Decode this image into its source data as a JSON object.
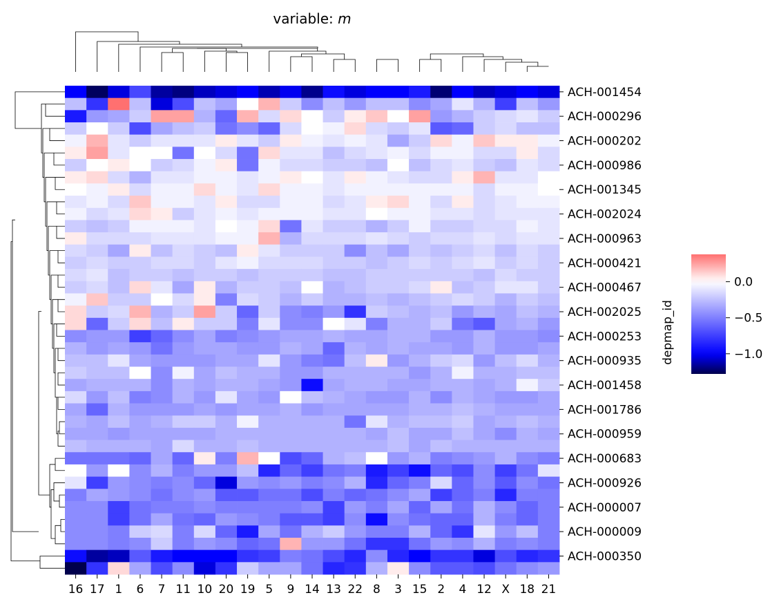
{
  "chart_data": {
    "type": "heatmap",
    "title_prefix": "variable: ",
    "title_var": "m",
    "ylabel": "depmap_id",
    "columns": [
      "16",
      "17",
      "1",
      "6",
      "7",
      "11",
      "10",
      "20",
      "19",
      "5",
      "9",
      "14",
      "13",
      "22",
      "8",
      "3",
      "15",
      "2",
      "4",
      "12",
      "X",
      "18",
      "21"
    ],
    "rows": [
      {
        "label": "ACH-001454",
        "shown": true
      },
      {
        "label": "",
        "shown": false
      },
      {
        "label": "ACH-000296",
        "shown": true
      },
      {
        "label": "",
        "shown": false
      },
      {
        "label": "ACH-000202",
        "shown": true
      },
      {
        "label": "",
        "shown": false
      },
      {
        "label": "ACH-000986",
        "shown": true
      },
      {
        "label": "",
        "shown": false
      },
      {
        "label": "ACH-001345",
        "shown": true
      },
      {
        "label": "",
        "shown": false
      },
      {
        "label": "ACH-002024",
        "shown": true
      },
      {
        "label": "",
        "shown": false
      },
      {
        "label": "ACH-000963",
        "shown": true
      },
      {
        "label": "",
        "shown": false
      },
      {
        "label": "ACH-000421",
        "shown": true
      },
      {
        "label": "",
        "shown": false
      },
      {
        "label": "ACH-000467",
        "shown": true
      },
      {
        "label": "",
        "shown": false
      },
      {
        "label": "ACH-002025",
        "shown": true
      },
      {
        "label": "",
        "shown": false
      },
      {
        "label": "ACH-000253",
        "shown": true
      },
      {
        "label": "",
        "shown": false
      },
      {
        "label": "ACH-000935",
        "shown": true
      },
      {
        "label": "",
        "shown": false
      },
      {
        "label": "ACH-001458",
        "shown": true
      },
      {
        "label": "",
        "shown": false
      },
      {
        "label": "ACH-001786",
        "shown": true
      },
      {
        "label": "",
        "shown": false
      },
      {
        "label": "ACH-000959",
        "shown": true
      },
      {
        "label": "",
        "shown": false
      },
      {
        "label": "ACH-000683",
        "shown": true
      },
      {
        "label": "",
        "shown": false
      },
      {
        "label": "ACH-000926",
        "shown": true
      },
      {
        "label": "",
        "shown": false
      },
      {
        "label": "ACH-000007",
        "shown": true
      },
      {
        "label": "",
        "shown": false
      },
      {
        "label": "ACH-000009",
        "shown": true
      },
      {
        "label": "",
        "shown": false
      },
      {
        "label": "ACH-000350",
        "shown": true
      },
      {
        "label": "",
        "shown": false
      }
    ],
    "values": [
      [
        -1.0,
        -1.25,
        -1.05,
        -0.72,
        -1.15,
        -1.2,
        -1.1,
        -1.05,
        -1.0,
        -1.12,
        -1.02,
        -1.18,
        -0.95,
        -1.05,
        -1.0,
        -1.0,
        -0.9,
        -1.22,
        -1.0,
        -1.1,
        -1.05,
        -1.0,
        -1.05
      ],
      [
        -0.25,
        -0.8,
        0.38,
        -0.25,
        -1.05,
        -0.7,
        -0.25,
        -0.35,
        0.0,
        0.2,
        -0.2,
        -0.45,
        -0.25,
        -0.4,
        -0.25,
        -0.25,
        -0.45,
        -0.35,
        -0.1,
        -0.3,
        -0.75,
        -0.25,
        -0.4
      ],
      [
        -0.9,
        -0.4,
        -0.35,
        -0.2,
        0.25,
        0.25,
        -0.3,
        -0.6,
        0.2,
        -0.15,
        0.1,
        0.0,
        -0.2,
        0.05,
        0.15,
        0.0,
        0.25,
        -0.4,
        -0.3,
        -0.2,
        -0.15,
        -0.1,
        -0.2
      ],
      [
        -0.2,
        0.0,
        -0.2,
        -0.7,
        -0.35,
        -0.25,
        -0.2,
        -0.55,
        -0.45,
        -0.6,
        -0.15,
        0.0,
        -0.05,
        0.1,
        -0.15,
        -0.2,
        -0.1,
        -0.65,
        -0.6,
        -0.2,
        -0.15,
        -0.25,
        -0.25
      ],
      [
        -0.05,
        0.2,
        -0.1,
        -0.2,
        -0.1,
        -0.1,
        -0.1,
        0.05,
        -0.1,
        -0.2,
        0.05,
        -0.05,
        -0.1,
        -0.05,
        -0.1,
        -0.35,
        -0.2,
        0.1,
        -0.05,
        0.15,
        0.05,
        0.05,
        -0.05
      ],
      [
        0.05,
        0.25,
        -0.1,
        0.0,
        0.0,
        -0.55,
        0.0,
        -0.15,
        -0.55,
        0.1,
        -0.1,
        -0.1,
        -0.25,
        -0.15,
        -0.1,
        -0.05,
        -0.15,
        -0.05,
        -0.05,
        -0.15,
        -0.15,
        0.05,
        -0.15
      ],
      [
        -0.2,
        0.0,
        0.05,
        0.0,
        -0.2,
        -0.15,
        -0.05,
        0.05,
        -0.55,
        -0.05,
        -0.15,
        -0.15,
        -0.2,
        -0.2,
        -0.25,
        0.0,
        -0.25,
        -0.15,
        -0.1,
        -0.2,
        -0.25,
        -0.1,
        -0.15
      ],
      [
        0.05,
        0.1,
        -0.15,
        -0.3,
        -0.1,
        -0.1,
        -0.05,
        -0.05,
        -0.1,
        -0.05,
        0.05,
        0.0,
        -0.1,
        0.05,
        -0.05,
        -0.1,
        -0.15,
        -0.15,
        0.05,
        0.2,
        -0.1,
        -0.1,
        0.0
      ],
      [
        0.0,
        -0.05,
        0.05,
        -0.15,
        -0.05,
        -0.05,
        0.1,
        -0.05,
        -0.1,
        0.1,
        -0.05,
        -0.05,
        -0.1,
        -0.05,
        -0.05,
        -0.05,
        -0.05,
        -0.05,
        -0.05,
        -0.15,
        -0.05,
        -0.05,
        0.0
      ],
      [
        -0.1,
        -0.05,
        -0.15,
        0.15,
        -0.05,
        -0.05,
        -0.1,
        0.05,
        -0.15,
        -0.15,
        -0.05,
        -0.05,
        -0.15,
        -0.1,
        0.05,
        0.1,
        -0.05,
        -0.15,
        0.05,
        -0.15,
        -0.1,
        -0.05,
        -0.05
      ],
      [
        -0.05,
        -0.15,
        -0.1,
        0.1,
        0.05,
        -0.2,
        -0.1,
        -0.05,
        -0.1,
        -0.05,
        -0.05,
        -0.05,
        -0.1,
        -0.1,
        0.0,
        -0.05,
        -0.05,
        -0.1,
        -0.1,
        -0.15,
        -0.1,
        -0.1,
        -0.1
      ],
      [
        -0.2,
        -0.25,
        -0.2,
        -0.05,
        -0.05,
        -0.05,
        -0.1,
        0.0,
        -0.05,
        0.1,
        -0.55,
        -0.1,
        -0.2,
        -0.2,
        -0.3,
        -0.2,
        -0.05,
        -0.2,
        -0.2,
        -0.15,
        -0.15,
        -0.05,
        -0.1
      ],
      [
        0.05,
        -0.15,
        -0.15,
        -0.15,
        -0.1,
        -0.1,
        -0.1,
        -0.05,
        -0.05,
        0.2,
        -0.3,
        -0.15,
        -0.15,
        -0.15,
        -0.1,
        -0.15,
        -0.2,
        -0.15,
        -0.15,
        -0.1,
        -0.15,
        -0.1,
        -0.1
      ],
      [
        -0.15,
        -0.2,
        -0.35,
        0.05,
        -0.25,
        -0.15,
        -0.2,
        -0.25,
        0.05,
        -0.1,
        -0.2,
        -0.2,
        -0.2,
        -0.45,
        -0.25,
        -0.35,
        -0.2,
        -0.25,
        -0.2,
        -0.15,
        -0.25,
        -0.15,
        -0.2
      ],
      [
        -0.2,
        -0.15,
        -0.2,
        -0.2,
        -0.15,
        -0.15,
        -0.2,
        -0.1,
        -0.05,
        -0.15,
        -0.15,
        -0.15,
        -0.2,
        -0.2,
        -0.25,
        -0.2,
        -0.15,
        -0.2,
        -0.15,
        -0.1,
        -0.2,
        -0.15,
        -0.2
      ],
      [
        -0.15,
        -0.1,
        -0.25,
        -0.2,
        -0.2,
        -0.25,
        -0.2,
        -0.2,
        -0.25,
        -0.2,
        -0.2,
        -0.2,
        -0.25,
        -0.25,
        -0.2,
        -0.2,
        -0.2,
        -0.2,
        -0.2,
        -0.25,
        -0.15,
        -0.2,
        -0.2
      ],
      [
        -0.2,
        -0.15,
        -0.25,
        0.1,
        -0.1,
        -0.35,
        0.05,
        -0.3,
        -0.2,
        -0.2,
        -0.25,
        0.0,
        -0.3,
        -0.25,
        -0.2,
        -0.2,
        -0.15,
        0.05,
        -0.25,
        -0.2,
        -0.1,
        -0.1,
        -0.2
      ],
      [
        -0.05,
        0.15,
        -0.2,
        -0.2,
        0.0,
        -0.15,
        0.05,
        -0.5,
        -0.15,
        -0.2,
        -0.3,
        -0.2,
        -0.3,
        -0.3,
        -0.25,
        -0.3,
        -0.25,
        -0.2,
        -0.15,
        -0.2,
        -0.3,
        -0.2,
        -0.25
      ],
      [
        0.1,
        -0.2,
        -0.15,
        0.2,
        -0.3,
        -0.2,
        0.25,
        -0.2,
        -0.6,
        -0.2,
        -0.45,
        -0.5,
        -0.4,
        -0.8,
        -0.2,
        -0.25,
        -0.3,
        -0.25,
        -0.4,
        -0.3,
        -0.35,
        -0.25,
        -0.3
      ],
      [
        0.1,
        -0.6,
        -0.2,
        0.1,
        -0.25,
        0.05,
        -0.2,
        -0.2,
        -0.5,
        -0.1,
        -0.45,
        -0.45,
        0.0,
        -0.1,
        -0.5,
        -0.3,
        -0.3,
        -0.2,
        -0.55,
        -0.65,
        -0.35,
        -0.3,
        -0.4
      ],
      [
        -0.45,
        -0.4,
        -0.4,
        -0.75,
        -0.6,
        -0.45,
        -0.35,
        -0.5,
        -0.45,
        -0.4,
        -0.35,
        -0.35,
        -0.3,
        -0.35,
        -0.35,
        -0.3,
        -0.3,
        -0.4,
        -0.4,
        -0.3,
        -0.4,
        -0.4,
        -0.45
      ],
      [
        -0.3,
        -0.4,
        -0.35,
        -0.4,
        -0.55,
        -0.4,
        -0.35,
        -0.35,
        -0.4,
        -0.4,
        -0.3,
        -0.35,
        -0.6,
        -0.3,
        -0.35,
        -0.3,
        -0.35,
        -0.35,
        -0.4,
        -0.3,
        -0.4,
        -0.4,
        -0.35
      ],
      [
        -0.25,
        -0.25,
        -0.1,
        -0.35,
        -0.4,
        -0.4,
        -0.4,
        -0.35,
        -0.35,
        -0.1,
        -0.4,
        -0.5,
        -0.55,
        -0.25,
        0.05,
        -0.4,
        -0.3,
        -0.2,
        -0.15,
        -0.4,
        -0.25,
        -0.15,
        -0.3
      ],
      [
        -0.2,
        -0.25,
        -0.25,
        0.0,
        -0.45,
        -0.05,
        -0.35,
        -0.25,
        -0.3,
        -0.3,
        -0.4,
        -0.4,
        -0.3,
        -0.3,
        -0.3,
        -0.3,
        -0.4,
        -0.3,
        -0.05,
        -0.3,
        -0.3,
        -0.25,
        -0.25
      ],
      [
        -0.35,
        -0.3,
        -0.3,
        -0.3,
        -0.45,
        -0.3,
        -0.35,
        -0.3,
        -0.3,
        -0.35,
        -0.4,
        -0.95,
        -0.35,
        -0.3,
        -0.3,
        -0.35,
        -0.35,
        -0.3,
        -0.3,
        -0.35,
        -0.3,
        -0.05,
        -0.2
      ],
      [
        -0.15,
        -0.4,
        -0.25,
        -0.5,
        -0.45,
        -0.3,
        -0.4,
        -0.1,
        -0.35,
        -0.4,
        0.0,
        -0.25,
        -0.3,
        -0.35,
        -0.4,
        -0.4,
        -0.3,
        -0.45,
        -0.3,
        -0.35,
        -0.4,
        -0.4,
        -0.35
      ],
      [
        -0.35,
        -0.6,
        -0.3,
        -0.4,
        -0.4,
        -0.4,
        -0.35,
        -0.4,
        -0.35,
        -0.35,
        -0.3,
        -0.4,
        -0.35,
        -0.35,
        -0.35,
        -0.35,
        -0.3,
        -0.3,
        -0.25,
        -0.3,
        -0.35,
        -0.35,
        -0.35
      ],
      [
        -0.3,
        -0.35,
        -0.25,
        -0.35,
        -0.3,
        -0.2,
        -0.2,
        -0.3,
        -0.05,
        -0.3,
        -0.3,
        -0.3,
        -0.3,
        -0.55,
        -0.1,
        -0.3,
        -0.25,
        -0.25,
        -0.2,
        -0.35,
        -0.3,
        -0.25,
        -0.3
      ],
      [
        -0.35,
        -0.35,
        -0.4,
        -0.35,
        -0.35,
        -0.35,
        -0.35,
        -0.3,
        -0.3,
        -0.3,
        -0.3,
        -0.3,
        -0.3,
        -0.3,
        -0.35,
        -0.25,
        -0.35,
        -0.35,
        -0.25,
        -0.35,
        -0.45,
        -0.3,
        -0.35
      ],
      [
        -0.25,
        -0.3,
        -0.3,
        -0.3,
        -0.35,
        -0.15,
        -0.3,
        -0.3,
        -0.25,
        -0.3,
        -0.3,
        -0.3,
        -0.3,
        -0.3,
        -0.3,
        -0.25,
        -0.35,
        -0.25,
        -0.3,
        -0.3,
        -0.3,
        -0.3,
        -0.3
      ],
      [
        -0.55,
        -0.55,
        -0.55,
        -0.6,
        -0.35,
        -0.6,
        0.05,
        -0.5,
        0.2,
        0.0,
        -0.7,
        -0.6,
        -0.3,
        -0.25,
        0.0,
        -0.4,
        -0.3,
        -0.5,
        -0.45,
        -0.4,
        -0.3,
        -0.45,
        -0.5
      ],
      [
        0.0,
        -0.4,
        0.0,
        -0.45,
        -0.3,
        -0.5,
        -0.4,
        -0.4,
        -0.25,
        -0.85,
        -0.6,
        -0.75,
        -0.55,
        -0.5,
        -0.9,
        -0.75,
        -0.95,
        -0.6,
        -0.7,
        -0.45,
        -0.75,
        -0.55,
        -0.1
      ],
      [
        -0.1,
        -0.75,
        -0.4,
        -0.45,
        -0.5,
        -0.45,
        -0.6,
        -1.05,
        -0.4,
        -0.45,
        -0.4,
        -0.5,
        -0.45,
        -0.3,
        -0.85,
        -0.6,
        -0.5,
        -0.15,
        -0.6,
        -0.45,
        -0.65,
        -0.45,
        -0.55
      ],
      [
        -0.5,
        -0.35,
        -0.4,
        -0.45,
        -0.55,
        -0.45,
        -0.4,
        -0.65,
        -0.65,
        -0.55,
        -0.55,
        -0.7,
        -0.5,
        -0.6,
        -0.55,
        -0.45,
        -0.35,
        -0.75,
        -0.6,
        -0.5,
        -0.85,
        -0.5,
        -0.5
      ],
      [
        -0.45,
        -0.45,
        -0.75,
        -0.55,
        -0.5,
        -0.5,
        -0.45,
        -0.5,
        -0.5,
        -0.5,
        -0.5,
        -0.45,
        -0.75,
        -0.4,
        -0.5,
        -0.35,
        -0.6,
        -0.35,
        -0.55,
        -0.3,
        -0.45,
        -0.6,
        -0.5
      ],
      [
        -0.45,
        -0.45,
        -0.75,
        -0.55,
        -0.35,
        -0.55,
        -0.6,
        -0.4,
        -0.45,
        -0.5,
        -0.65,
        -0.65,
        -0.75,
        -0.45,
        -0.95,
        -0.45,
        -0.55,
        -0.6,
        -0.6,
        -0.3,
        -0.5,
        -0.6,
        -0.5
      ],
      [
        -0.45,
        -0.45,
        -0.5,
        -0.2,
        -0.15,
        -0.5,
        -0.15,
        -0.6,
        -0.9,
        -0.35,
        -0.55,
        -0.3,
        -0.2,
        -0.4,
        -0.5,
        -0.5,
        -0.3,
        -0.6,
        -0.8,
        -0.1,
        -0.4,
        -0.25,
        -0.5
      ],
      [
        -0.45,
        -0.45,
        -0.5,
        -0.45,
        -0.2,
        -0.5,
        -0.4,
        -0.45,
        -0.6,
        -0.55,
        0.2,
        -0.4,
        -0.4,
        -0.55,
        -0.8,
        -0.8,
        -0.55,
        -0.4,
        -0.45,
        -0.3,
        -0.5,
        -0.45,
        -0.5
      ],
      [
        -0.95,
        -1.15,
        -1.1,
        -0.65,
        -0.9,
        -1.0,
        -1.0,
        -1.0,
        -0.8,
        -0.75,
        -0.5,
        -0.55,
        -0.7,
        -0.85,
        -0.45,
        -0.85,
        -1.0,
        -0.8,
        -0.8,
        -1.05,
        -0.7,
        -0.85,
        -0.8
      ],
      [
        -1.28,
        -0.8,
        0.1,
        -0.35,
        -0.7,
        -0.45,
        -1.05,
        -0.8,
        -0.2,
        -0.35,
        -0.35,
        -0.55,
        -0.85,
        -0.8,
        -0.3,
        0.05,
        -0.45,
        -0.65,
        -0.65,
        -0.7,
        -0.55,
        -0.45,
        -0.4
      ]
    ],
    "color_scale": {
      "colormap": "seismic",
      "vmin": -1.28,
      "vmax": 0.38,
      "center": 0.0,
      "colors": {
        "low": "#00004c",
        "mid_low": "#0000ff",
        "center": "#ffffff",
        "high": "#ff7070"
      },
      "ticks": [
        0.0,
        -0.5,
        -1.0
      ],
      "tick_labels": [
        "0.0",
        "−0.5",
        "−1.0"
      ]
    },
    "dendrograms": {
      "columns": true,
      "rows": true,
      "line_color": "#000000"
    }
  }
}
